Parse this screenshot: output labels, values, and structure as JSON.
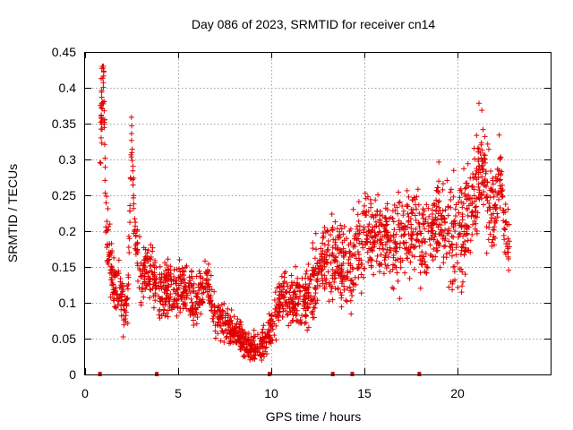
{
  "chart_data": {
    "type": "scatter",
    "title": "Day 086 of 2023, SRMTID for receiver cn14",
    "xlabel": "GPS time / hours",
    "ylabel": "SRMTID / TECUs",
    "xlim": [
      0,
      25
    ],
    "ylim": [
      0,
      0.45
    ],
    "xticks": [
      0,
      5,
      10,
      15,
      20
    ],
    "yticks": [
      0,
      0.05,
      0.1,
      0.15,
      0.2,
      0.25,
      0.3,
      0.35,
      0.4,
      0.45
    ],
    "xtick_labels": [
      "0",
      "5",
      "10",
      "15",
      "20"
    ],
    "ytick_labels": [
      "0",
      "0.05",
      "0.1",
      "0.15",
      "0.2",
      "0.25",
      "0.3",
      "0.35",
      "0.4",
      "0.45"
    ],
    "grid": true,
    "marker": "+",
    "color": "#e00000",
    "zero_points_x": [
      0.8,
      3.85,
      9.9,
      13.3,
      14.35,
      17.95
    ],
    "series": [
      {
        "name": "SRMTID",
        "profile": [
          [
            0.8,
            0.32
          ],
          [
            0.9,
            0.39
          ],
          [
            1.0,
            0.42
          ],
          [
            1.1,
            0.24
          ],
          [
            1.25,
            0.17
          ],
          [
            1.5,
            0.13
          ],
          [
            1.8,
            0.12
          ],
          [
            2.1,
            0.09
          ],
          [
            2.3,
            0.1
          ],
          [
            2.5,
            0.33
          ],
          [
            2.7,
            0.18
          ],
          [
            3.0,
            0.14
          ],
          [
            3.5,
            0.15
          ],
          [
            4.0,
            0.11
          ],
          [
            4.5,
            0.12
          ],
          [
            5.0,
            0.12
          ],
          [
            5.5,
            0.11
          ],
          [
            6.0,
            0.1
          ],
          [
            6.5,
            0.13
          ],
          [
            7.0,
            0.08
          ],
          [
            7.5,
            0.07
          ],
          [
            8.0,
            0.06
          ],
          [
            8.5,
            0.045
          ],
          [
            9.0,
            0.035
          ],
          [
            9.5,
            0.04
          ],
          [
            10.0,
            0.06
          ],
          [
            10.5,
            0.11
          ],
          [
            11.0,
            0.1
          ],
          [
            11.5,
            0.1
          ],
          [
            12.0,
            0.11
          ],
          [
            12.5,
            0.14
          ],
          [
            13.0,
            0.16
          ],
          [
            13.5,
            0.17
          ],
          [
            14.0,
            0.14
          ],
          [
            14.5,
            0.17
          ],
          [
            15.0,
            0.19
          ],
          [
            15.5,
            0.2
          ],
          [
            16.0,
            0.19
          ],
          [
            16.5,
            0.18
          ],
          [
            17.0,
            0.19
          ],
          [
            17.5,
            0.2
          ],
          [
            18.0,
            0.19
          ],
          [
            18.5,
            0.2
          ],
          [
            19.0,
            0.22
          ],
          [
            19.5,
            0.21
          ],
          [
            20.0,
            0.18
          ],
          [
            20.5,
            0.22
          ],
          [
            21.0,
            0.25
          ],
          [
            21.3,
            0.31
          ],
          [
            21.6,
            0.25
          ],
          [
            22.0,
            0.22
          ],
          [
            22.3,
            0.28
          ],
          [
            22.5,
            0.22
          ],
          [
            22.8,
            0.17
          ]
        ],
        "spread": [
          [
            0.8,
            0.06
          ],
          [
            1.2,
            0.04
          ],
          [
            2.0,
            0.03
          ],
          [
            3.0,
            0.035
          ],
          [
            6.0,
            0.03
          ],
          [
            8.0,
            0.018
          ],
          [
            9.5,
            0.02
          ],
          [
            11.0,
            0.035
          ],
          [
            13.0,
            0.045
          ],
          [
            15.0,
            0.05
          ],
          [
            18.0,
            0.05
          ],
          [
            20.0,
            0.06
          ],
          [
            21.5,
            0.07
          ],
          [
            22.8,
            0.03
          ]
        ],
        "x_range": [
          0.8,
          22.8
        ],
        "n_points": 2200
      }
    ]
  }
}
